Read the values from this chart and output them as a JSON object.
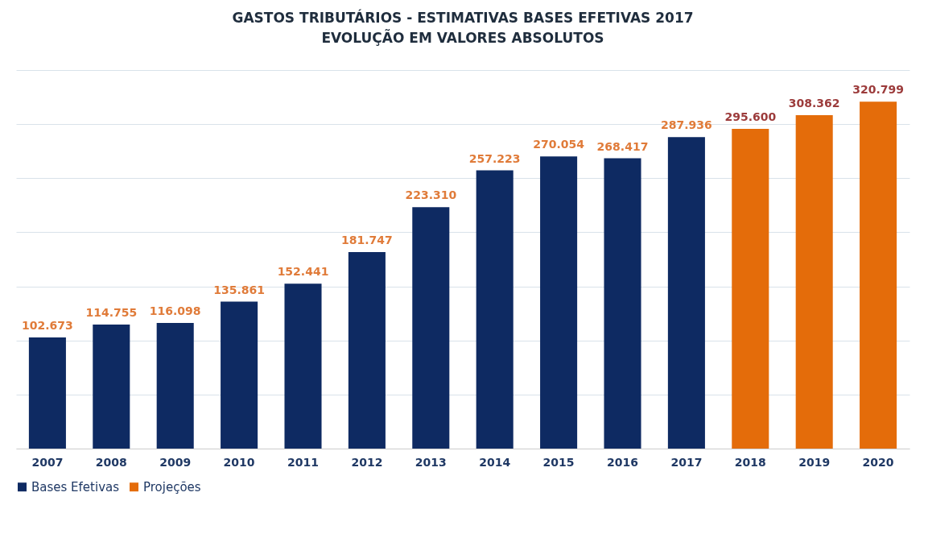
{
  "chart_data": {
    "type": "bar",
    "title": "GASTOS TRIBUTÁRIOS - ESTIMATIVAS BASES EFETIVAS 2017",
    "subtitle": "EVOLUÇÃO EM VALORES ABSOLUTOS",
    "categories": [
      "2007",
      "2008",
      "2009",
      "2010",
      "2011",
      "2012",
      "2013",
      "2014",
      "2015",
      "2016",
      "2017",
      "2018",
      "2019",
      "2020"
    ],
    "series": [
      {
        "name": "Bases Efetivas",
        "color": "#0e2a62",
        "values": [
          102673,
          114755,
          116098,
          135861,
          152441,
          181747,
          223310,
          257223,
          270054,
          268417,
          287936,
          null,
          null,
          null
        ],
        "value_labels": [
          "102.673",
          "114.755",
          "116.098",
          "135.861",
          "152.441",
          "181.747",
          "223.310",
          "257.223",
          "270.054",
          "268.417",
          "287.936",
          null,
          null,
          null
        ]
      },
      {
        "name": "Projeções",
        "color": "#e46c0a",
        "values": [
          null,
          null,
          null,
          null,
          null,
          null,
          null,
          null,
          null,
          null,
          null,
          295600,
          308362,
          320799
        ],
        "value_labels": [
          null,
          null,
          null,
          null,
          null,
          null,
          null,
          null,
          null,
          null,
          null,
          "295.600",
          "308.362",
          "320.799"
        ]
      }
    ],
    "ylim": [
      0,
      350000
    ],
    "yticks": [
      {
        "value": 0,
        "label": null
      },
      {
        "value": 50000,
        "label": null
      },
      {
        "value": 100000,
        "label": null
      },
      {
        "value": 150000,
        "label": null
      },
      {
        "value": 200000,
        "label": null
      },
      {
        "value": 250000,
        "label": null
      },
      {
        "value": 300000,
        "label": null
      },
      {
        "value": 350000,
        "label": null
      }
    ],
    "tick_labels": "x",
    "grid": "y",
    "legend": "bottom left"
  }
}
